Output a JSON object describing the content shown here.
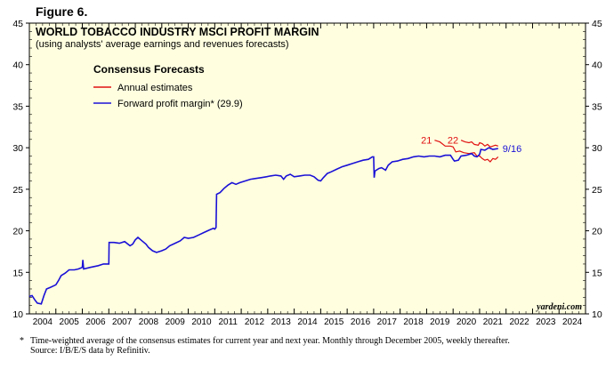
{
  "figure_label": "Figure 6.",
  "chart_data": {
    "type": "line",
    "title": "WORLD TOBACCO INDUSTRY MSCI PROFIT MARGIN",
    "subtitle": "(using analysts' average earnings and revenues forecasts)",
    "legend_title": "Consensus Forecasts",
    "legend_position": "top-left",
    "xlabel": "",
    "ylabel": "",
    "ylim": [
      10,
      45
    ],
    "yticks": [
      10,
      15,
      20,
      25,
      30,
      35,
      40,
      45
    ],
    "xlim": [
      2004,
      2025
    ],
    "xtick_labels": [
      "2004",
      "2005",
      "2006",
      "2007",
      "2008",
      "2009",
      "2010",
      "2011",
      "2012",
      "2013",
      "2014",
      "2015",
      "2016",
      "2017",
      "2018",
      "2019",
      "2020",
      "2021",
      "2022",
      "2023",
      "2024"
    ],
    "background_color": "#ffffe0",
    "watermark": "yardeni.com",
    "series": [
      {
        "name": "Forward profit margin* (29.9)",
        "color": "#1a10d6",
        "end_label": "9/16",
        "points": [
          [
            2004.0,
            12.1
          ],
          [
            2004.1,
            12.2
          ],
          [
            2004.2,
            11.7
          ],
          [
            2004.3,
            11.3
          ],
          [
            2004.45,
            11.2
          ],
          [
            2004.55,
            12.2
          ],
          [
            2004.65,
            13.0
          ],
          [
            2004.8,
            13.2
          ],
          [
            2005.0,
            13.5
          ],
          [
            2005.1,
            14.0
          ],
          [
            2005.2,
            14.6
          ],
          [
            2005.35,
            14.9
          ],
          [
            2005.5,
            15.3
          ],
          [
            2005.7,
            15.3
          ],
          [
            2005.85,
            15.4
          ],
          [
            2006.0,
            15.6
          ],
          [
            2006.02,
            16.5
          ],
          [
            2006.05,
            15.4
          ],
          [
            2006.3,
            15.6
          ],
          [
            2006.6,
            15.8
          ],
          [
            2006.8,
            16.0
          ],
          [
            2006.95,
            16.0
          ],
          [
            2007.0,
            16.0
          ],
          [
            2007.01,
            18.6
          ],
          [
            2007.2,
            18.6
          ],
          [
            2007.4,
            18.5
          ],
          [
            2007.6,
            18.7
          ],
          [
            2007.8,
            18.2
          ],
          [
            2007.9,
            18.4
          ],
          [
            2008.0,
            18.9
          ],
          [
            2008.1,
            19.2
          ],
          [
            2008.25,
            18.8
          ],
          [
            2008.4,
            18.4
          ],
          [
            2008.5,
            18.0
          ],
          [
            2008.65,
            17.6
          ],
          [
            2008.8,
            17.4
          ],
          [
            2009.0,
            17.6
          ],
          [
            2009.15,
            17.8
          ],
          [
            2009.3,
            18.2
          ],
          [
            2009.5,
            18.5
          ],
          [
            2009.7,
            18.8
          ],
          [
            2009.85,
            19.2
          ],
          [
            2010.0,
            19.1
          ],
          [
            2010.2,
            19.2
          ],
          [
            2010.4,
            19.5
          ],
          [
            2010.6,
            19.8
          ],
          [
            2010.8,
            20.1
          ],
          [
            2010.95,
            20.3
          ],
          [
            2011.0,
            20.2
          ],
          [
            2011.05,
            20.4
          ],
          [
            2011.07,
            24.4
          ],
          [
            2011.2,
            24.6
          ],
          [
            2011.35,
            25.1
          ],
          [
            2011.5,
            25.5
          ],
          [
            2011.65,
            25.8
          ],
          [
            2011.8,
            25.6
          ],
          [
            2011.95,
            25.8
          ],
          [
            2012.15,
            26.0
          ],
          [
            2012.35,
            26.2
          ],
          [
            2012.55,
            26.3
          ],
          [
            2012.75,
            26.4
          ],
          [
            2012.95,
            26.5
          ],
          [
            2013.1,
            26.6
          ],
          [
            2013.3,
            26.7
          ],
          [
            2013.5,
            26.6
          ],
          [
            2013.6,
            26.2
          ],
          [
            2013.7,
            26.6
          ],
          [
            2013.85,
            26.8
          ],
          [
            2014.0,
            26.5
          ],
          [
            2014.2,
            26.6
          ],
          [
            2014.4,
            26.7
          ],
          [
            2014.6,
            26.7
          ],
          [
            2014.75,
            26.5
          ],
          [
            2014.9,
            26.1
          ],
          [
            2015.0,
            26.0
          ],
          [
            2015.1,
            26.4
          ],
          [
            2015.25,
            26.9
          ],
          [
            2015.4,
            27.1
          ],
          [
            2015.6,
            27.4
          ],
          [
            2015.8,
            27.7
          ],
          [
            2016.0,
            27.9
          ],
          [
            2016.2,
            28.1
          ],
          [
            2016.4,
            28.3
          ],
          [
            2016.6,
            28.5
          ],
          [
            2016.8,
            28.6
          ],
          [
            2016.95,
            28.9
          ],
          [
            2017.0,
            28.9
          ],
          [
            2017.02,
            26.4
          ],
          [
            2017.05,
            27.2
          ],
          [
            2017.2,
            27.5
          ],
          [
            2017.3,
            27.6
          ],
          [
            2017.45,
            27.3
          ],
          [
            2017.55,
            27.9
          ],
          [
            2017.7,
            28.3
          ],
          [
            2017.9,
            28.4
          ],
          [
            2018.1,
            28.6
          ],
          [
            2018.3,
            28.7
          ],
          [
            2018.5,
            28.9
          ],
          [
            2018.7,
            29.0
          ],
          [
            2018.9,
            28.9
          ],
          [
            2019.1,
            29.0
          ],
          [
            2019.3,
            29.0
          ],
          [
            2019.5,
            28.9
          ],
          [
            2019.7,
            29.1
          ],
          [
            2019.9,
            29.1
          ],
          [
            2020.0,
            28.6
          ],
          [
            2020.05,
            28.4
          ],
          [
            2020.2,
            28.5
          ],
          [
            2020.3,
            29.0
          ],
          [
            2020.5,
            29.1
          ],
          [
            2020.7,
            29.3
          ],
          [
            2020.8,
            29.0
          ],
          [
            2020.9,
            28.9
          ],
          [
            2021.0,
            29.2
          ],
          [
            2021.05,
            29.8
          ],
          [
            2021.2,
            29.7
          ],
          [
            2021.35,
            30.0
          ],
          [
            2021.5,
            29.8
          ],
          [
            2021.7,
            29.9
          ]
        ]
      },
      {
        "name": "Annual estimates",
        "color": "#e01010",
        "segments": [
          {
            "label": "21",
            "points": [
              [
                2019.3,
                30.9
              ],
              [
                2019.5,
                30.7
              ],
              [
                2019.7,
                30.2
              ],
              [
                2019.9,
                30.2
              ],
              [
                2020.0,
                30.1
              ],
              [
                2020.1,
                29.5
              ],
              [
                2020.25,
                29.6
              ],
              [
                2020.4,
                29.4
              ],
              [
                2020.6,
                29.3
              ],
              [
                2020.8,
                29.4
              ],
              [
                2020.9,
                29.0
              ],
              [
                2021.0,
                29.0
              ],
              [
                2021.1,
                28.7
              ],
              [
                2021.2,
                28.5
              ],
              [
                2021.3,
                28.6
              ],
              [
                2021.4,
                28.3
              ],
              [
                2021.5,
                28.7
              ],
              [
                2021.6,
                28.6
              ],
              [
                2021.7,
                28.9
              ]
            ]
          },
          {
            "label": "22",
            "points": [
              [
                2020.3,
                30.9
              ],
              [
                2020.45,
                30.7
              ],
              [
                2020.6,
                30.6
              ],
              [
                2020.7,
                30.7
              ],
              [
                2020.8,
                30.4
              ],
              [
                2020.95,
                30.3
              ],
              [
                2021.0,
                30.6
              ],
              [
                2021.1,
                30.5
              ],
              [
                2021.2,
                30.2
              ],
              [
                2021.3,
                30.4
              ],
              [
                2021.4,
                30.1
              ],
              [
                2021.5,
                30.2
              ],
              [
                2021.6,
                30.3
              ],
              [
                2021.7,
                30.2
              ]
            ]
          }
        ]
      }
    ]
  },
  "footnote": {
    "star": "*",
    "line1": "Time-weighted average of the consensus estimates for current year and next year. Monthly through December 2005, weekly thereafter.",
    "line2": "Source: I/B/E/S data by Refinitiv."
  }
}
